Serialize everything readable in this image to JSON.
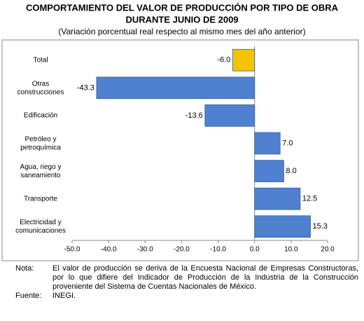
{
  "chart_data": {
    "type": "hbar",
    "title_lines": [
      "COMPORTAMIENTO DEL VALOR DE PRODUCCIÓN POR TIPO DE OBRA",
      "DURANTE JUNIO DE 2009"
    ],
    "subtitle": "(Variación porcentual real respecto al mismo mes del año anterior)",
    "categories": [
      "Total",
      "Otras\nconstrucciones",
      "Edificación",
      "Petróleo y\npetroquímica",
      "Agua, riego y\nsaneamiento",
      "Transporte",
      "Electricidad y\ncomunicaciones"
    ],
    "values": [
      -6.0,
      -43.3,
      -13.6,
      7.0,
      8.0,
      12.5,
      15.3
    ],
    "value_labels": [
      "-6.0",
      "-43.3",
      "-13.6",
      "7.0",
      "8.0",
      "12.5",
      "15.3"
    ],
    "colors": [
      "#f5c400",
      "#4f81d0",
      "#4f81d0",
      "#4f81d0",
      "#4f81d0",
      "#4f81d0",
      "#4f81d0"
    ],
    "xlim": [
      -50,
      20
    ],
    "xticks": [
      {
        "value": -50,
        "label": "-50.0"
      },
      {
        "value": -40,
        "label": "-40.0"
      },
      {
        "value": -30,
        "label": "-30.0"
      },
      {
        "value": -20,
        "label": "-20.0"
      },
      {
        "value": -10,
        "label": "-10.0"
      },
      {
        "value": 0,
        "label": "0.0"
      },
      {
        "value": 10,
        "label": "10.0"
      },
      {
        "value": 20,
        "label": "20.0"
      }
    ]
  },
  "notes": {
    "note_label": "Nota:",
    "note_text": "El valor de producción se deriva de la Encuesta Nacional de Empresas Constructoras, por lo que difiere del Indicador de Producción de la Industria de la Construcción proveniente del Sistema de Cuentas Nacionales de México.",
    "source_label": "Fuente:",
    "source_text": "INEGI."
  }
}
